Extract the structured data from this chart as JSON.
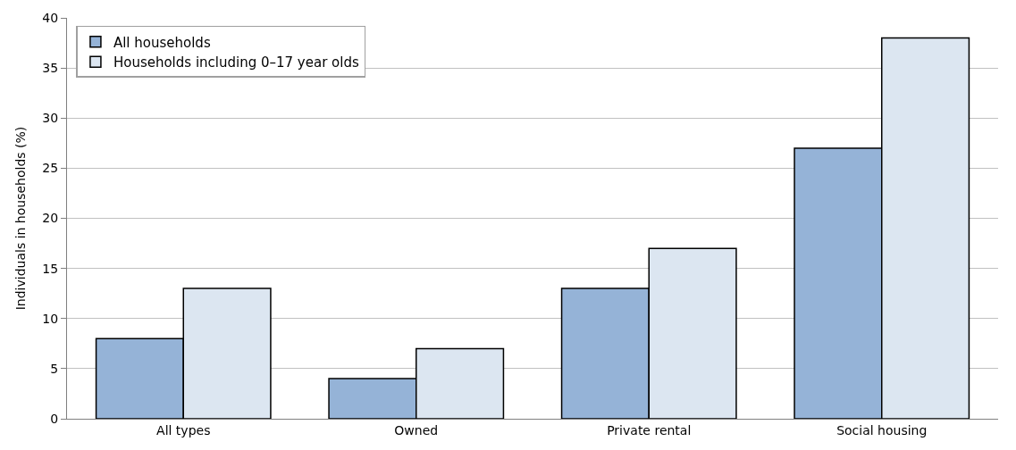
{
  "chart_data": {
    "type": "bar",
    "ylabel": "Individuals in households (%)",
    "categories": [
      "All types",
      "Owned",
      "Private rental",
      "Social housing"
    ],
    "series": [
      {
        "name": "All households",
        "color": "#95b3d7",
        "values": [
          8,
          4,
          13,
          27
        ]
      },
      {
        "name": "Households including 0–17 year olds",
        "color": "#dce6f1",
        "values": [
          13,
          7,
          17,
          38
        ]
      }
    ],
    "ylim": [
      0,
      40
    ],
    "yticks": [
      0,
      5,
      10,
      15,
      20,
      25,
      30,
      35,
      40
    ],
    "grid": "y",
    "legend": "top left"
  }
}
